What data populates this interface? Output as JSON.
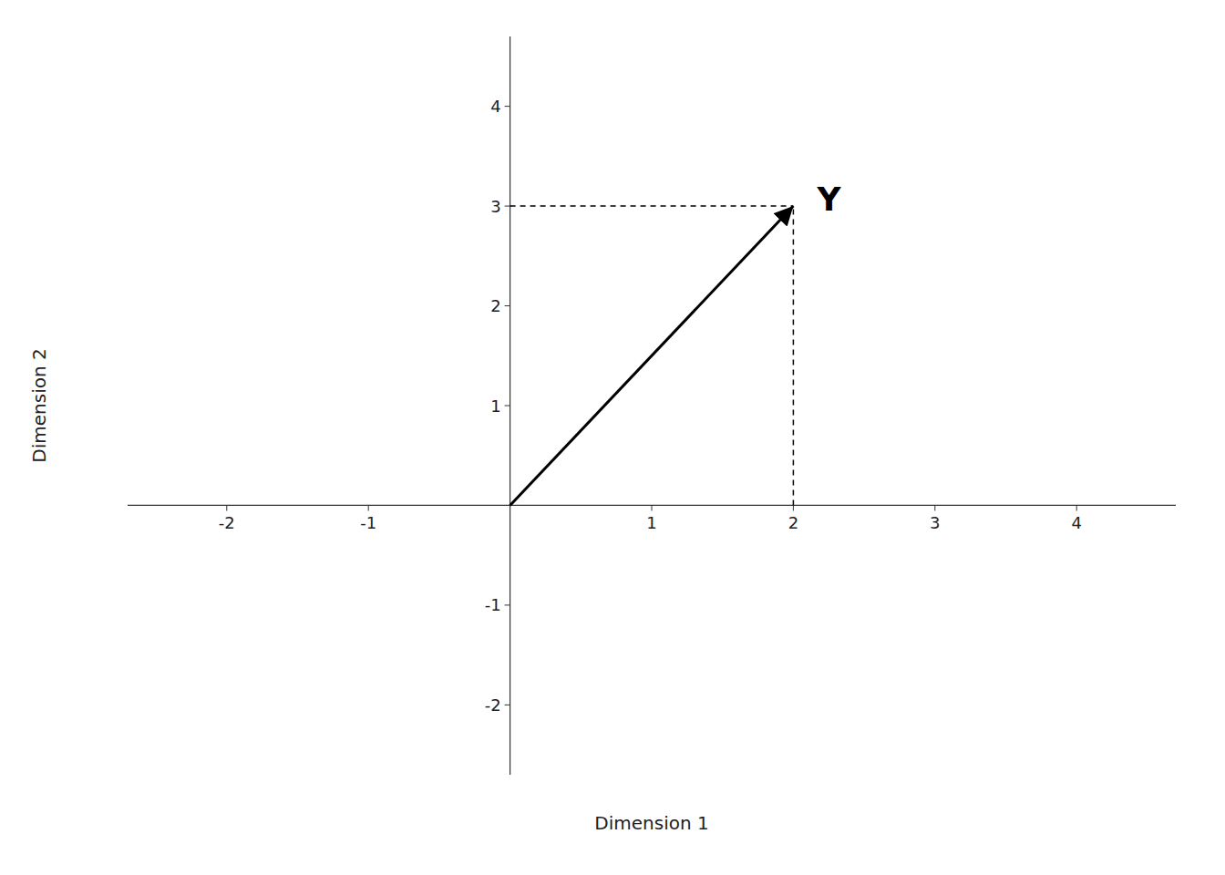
{
  "chart_data": {
    "type": "vector",
    "origin": [
      0,
      0
    ],
    "point": [
      2,
      3
    ],
    "label": "Y",
    "xlabel": "Dimension 1",
    "ylabel": "Dimension 2",
    "xlim": [
      -2.7,
      4.7
    ],
    "ylim": [
      -2.7,
      4.7
    ],
    "xticks": [
      -2,
      -1,
      1,
      2,
      3,
      4
    ],
    "yticks": [
      -2,
      -1,
      1,
      2,
      3,
      4
    ],
    "color": "black"
  }
}
